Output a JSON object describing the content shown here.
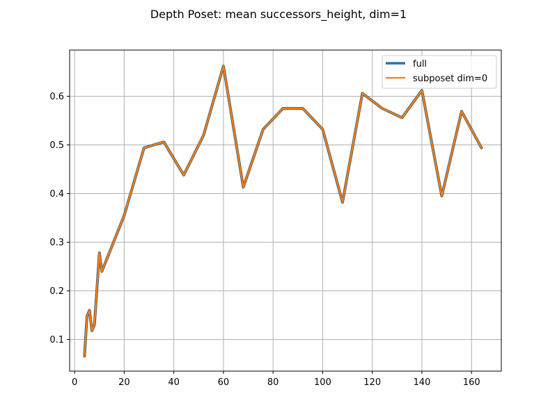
{
  "chart_data": {
    "type": "line",
    "title": "Depth Poset: mean successors_height, dim=1",
    "xlabel": "",
    "ylabel": "",
    "xlim": [
      -2.0,
      172.0
    ],
    "ylim": [
      0.035,
      0.695
    ],
    "xticks": [
      0,
      20,
      40,
      60,
      80,
      100,
      120,
      140,
      160
    ],
    "yticks": [
      0.1,
      0.2,
      0.3,
      0.4,
      0.5,
      0.6
    ],
    "grid": true,
    "legend_position": "top-right",
    "x": [
      4,
      5,
      6,
      7,
      8,
      10,
      11,
      20,
      28,
      36,
      44,
      52,
      60,
      68,
      76,
      84,
      92,
      100,
      108,
      116,
      124,
      132,
      140,
      148,
      156,
      164
    ],
    "series": [
      {
        "name": "full",
        "color": "#1f77b4",
        "values": [
          0.066,
          0.148,
          0.16,
          0.118,
          0.13,
          0.278,
          0.24,
          0.355,
          0.494,
          0.506,
          0.438,
          0.52,
          0.662,
          0.413,
          0.532,
          0.575,
          0.575,
          0.532,
          0.382,
          0.606,
          0.575,
          0.556,
          0.612,
          0.395,
          0.569,
          0.494
        ]
      },
      {
        "name": "subposet dim=0",
        "color": "#ff7f0e",
        "values": [
          0.066,
          0.148,
          0.16,
          0.118,
          0.13,
          0.278,
          0.24,
          0.355,
          0.494,
          0.506,
          0.438,
          0.52,
          0.662,
          0.413,
          0.532,
          0.575,
          0.575,
          0.532,
          0.382,
          0.606,
          0.575,
          0.556,
          0.612,
          0.395,
          0.569,
          0.494
        ]
      }
    ]
  }
}
